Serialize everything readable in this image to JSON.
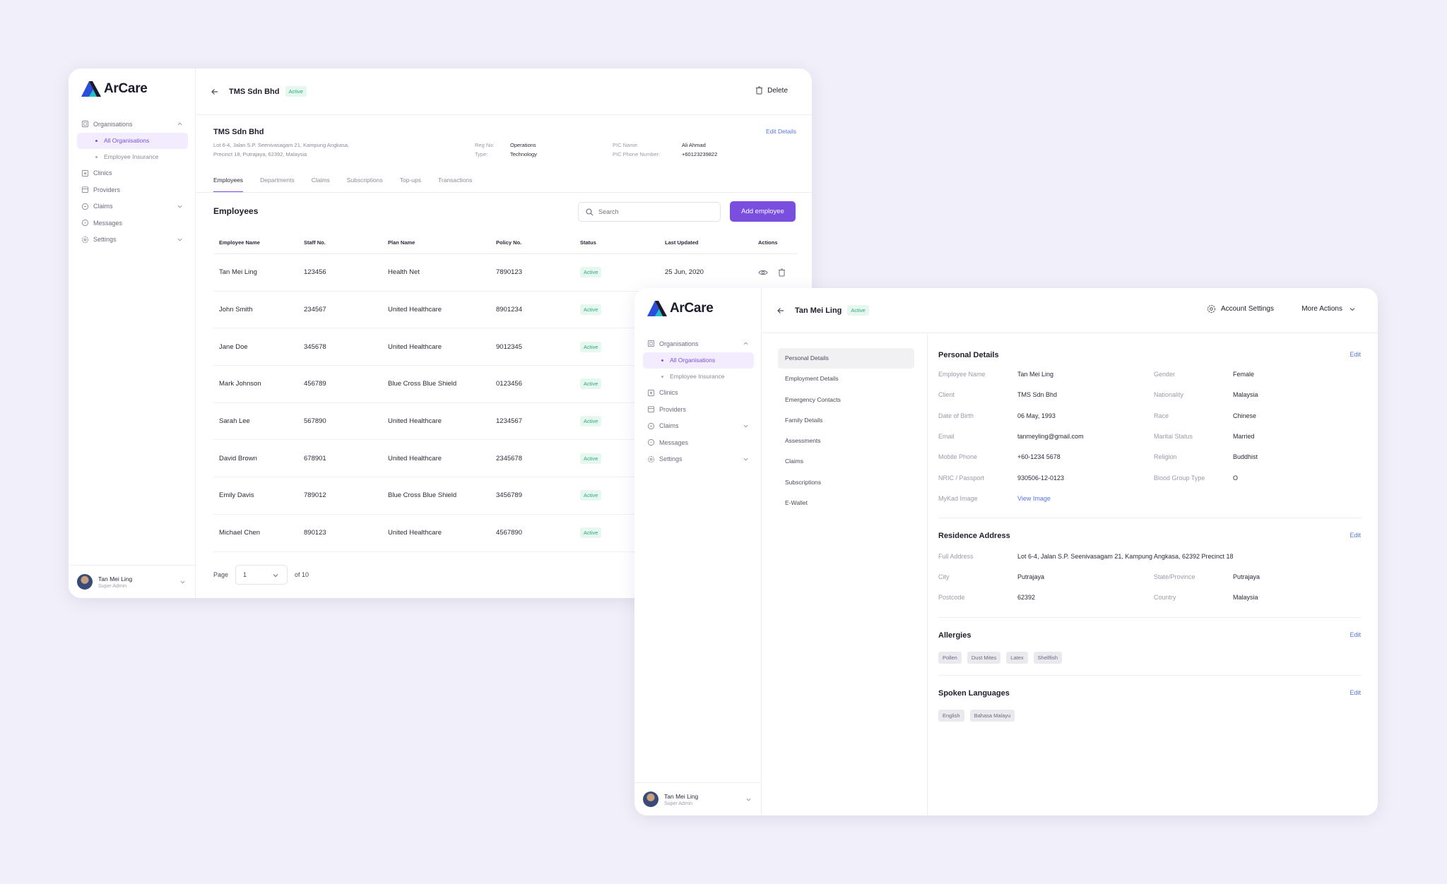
{
  "brand": {
    "name": "ArCare"
  },
  "sidebar": {
    "items": [
      {
        "label": "Organisations"
      },
      {
        "label": "All Organisations"
      },
      {
        "label": "Employee Insurance"
      },
      {
        "label": "Clinics"
      },
      {
        "label": "Providers"
      },
      {
        "label": "Claims"
      },
      {
        "label": "Messages"
      },
      {
        "label": "Settings"
      }
    ],
    "user": {
      "name": "Tan Mei Ling",
      "role": "Super Admin"
    }
  },
  "org_window": {
    "title": "TMS Sdn Bhd",
    "status": "Active",
    "delete_label": "Delete",
    "org": {
      "name": "TMS Sdn Bhd",
      "address_line1": "Lot 6-4, Jalan S.P. Seenivasagam 21, Kampung Angkasa,",
      "address_line2": "Precinct 18, Putrajaya, 62392, Malaysia",
      "reg_no_label": "Reg No:",
      "reg_no_value": "Operations",
      "type_label": "Type:",
      "type_value": "Technology",
      "pic_name_label": "PIC Name:",
      "pic_name_value": "Ali Ahmad",
      "pic_phone_label": "PIC Phone Number:",
      "pic_phone_value": "+60123239822",
      "edit_label": "Edit Details"
    },
    "tabs": [
      "Employees",
      "Departments",
      "Claims",
      "Subscriptions",
      "Top-ups",
      "Transactions"
    ],
    "section_title": "Employees",
    "search_placeholder": "Search",
    "add_button": "Add employee",
    "table": {
      "headers": [
        "Employee Name",
        "Staff No.",
        "Plan Name",
        "Policy No.",
        "Status",
        "Last Updated",
        "Actions"
      ],
      "rows": [
        {
          "name": "Tan Mei Ling",
          "staff": "123456",
          "plan": "Health Net",
          "policy": "7890123",
          "status": "Active",
          "updated": "25 Jun, 2020"
        },
        {
          "name": "John Smith",
          "staff": "234567",
          "plan": "United Healthcare",
          "policy": "8901234",
          "status": "Active",
          "updated": ""
        },
        {
          "name": "Jane Doe",
          "staff": "345678",
          "plan": "United Healthcare",
          "policy": "9012345",
          "status": "Active",
          "updated": ""
        },
        {
          "name": "Mark Johnson",
          "staff": "456789",
          "plan": "Blue Cross Blue Shield",
          "policy": "0123456",
          "status": "Active",
          "updated": ""
        },
        {
          "name": "Sarah Lee",
          "staff": "567890",
          "plan": "United Healthcare",
          "policy": "1234567",
          "status": "Active",
          "updated": ""
        },
        {
          "name": "David Brown",
          "staff": "678901",
          "plan": "United Healthcare",
          "policy": "2345678",
          "status": "Active",
          "updated": ""
        },
        {
          "name": "Emily Davis",
          "staff": "789012",
          "plan": "Blue Cross Blue Shield",
          "policy": "3456789",
          "status": "Active",
          "updated": ""
        },
        {
          "name": "Michael Chen",
          "staff": "890123",
          "plan": "United Healthcare",
          "policy": "4567890",
          "status": "Active",
          "updated": ""
        }
      ]
    },
    "pagination": {
      "label": "Page",
      "current": "1",
      "total": "of 10"
    }
  },
  "employee_window": {
    "title": "Tan Mei Ling",
    "status": "Active",
    "account_settings": "Account Settings",
    "more_actions": "More Actions",
    "subnav": [
      "Personal Details",
      "Employment Details",
      "Emergency Contacts",
      "Family Details",
      "Assessments",
      "Claims",
      "Subscriptions",
      "E-Wallet"
    ],
    "personal": {
      "title": "Personal Details",
      "edit": "Edit",
      "left": [
        {
          "k": "Employee Name",
          "v": "Tan Mei Ling"
        },
        {
          "k": "Client",
          "v": "TMS Sdn Bhd"
        },
        {
          "k": "Date of Birth",
          "v": "06 May, 1993"
        },
        {
          "k": "Email",
          "v": "tanmeyling@gmail.com"
        },
        {
          "k": "Mobile Phone",
          "v": "+60-1234 5678"
        },
        {
          "k": "NRIC / Passport",
          "v": "930506-12-0123"
        },
        {
          "k": "MyKad Image",
          "v": "View Image"
        }
      ],
      "right": [
        {
          "k": "Gender",
          "v": "Female"
        },
        {
          "k": "Nationality",
          "v": "Malaysia"
        },
        {
          "k": "Race",
          "v": "Chinese"
        },
        {
          "k": "Marital Status",
          "v": "Married"
        },
        {
          "k": "Religion",
          "v": "Buddhist"
        },
        {
          "k": "Blood Group Type",
          "v": "O"
        }
      ]
    },
    "residence": {
      "title": "Residence Address",
      "edit": "Edit",
      "full_address_label": "Full Address",
      "full_address": "Lot 6-4, Jalan S.P. Seenivasagam 21, Kampung Angkasa, 62392 Precinct 18",
      "city_label": "City",
      "city": "Putrajaya",
      "state_label": "State/Province",
      "state": "Putrajaya",
      "postcode_label": "Postcode",
      "postcode": "62392",
      "country_label": "Country",
      "country": "Malaysia"
    },
    "allergies": {
      "title": "Allergies",
      "edit": "Edit",
      "items": [
        "Pollen",
        "Dust Mites",
        "Latex",
        "Shellfish"
      ]
    },
    "languages": {
      "title": "Spoken Languages",
      "edit": "Edit",
      "items": [
        "English",
        "Bahasa Malayu"
      ]
    }
  },
  "colors": {
    "accent": "#7a4fe0",
    "link": "#5675e8",
    "success": "#2eaa7c",
    "background": "#f1eff9"
  }
}
